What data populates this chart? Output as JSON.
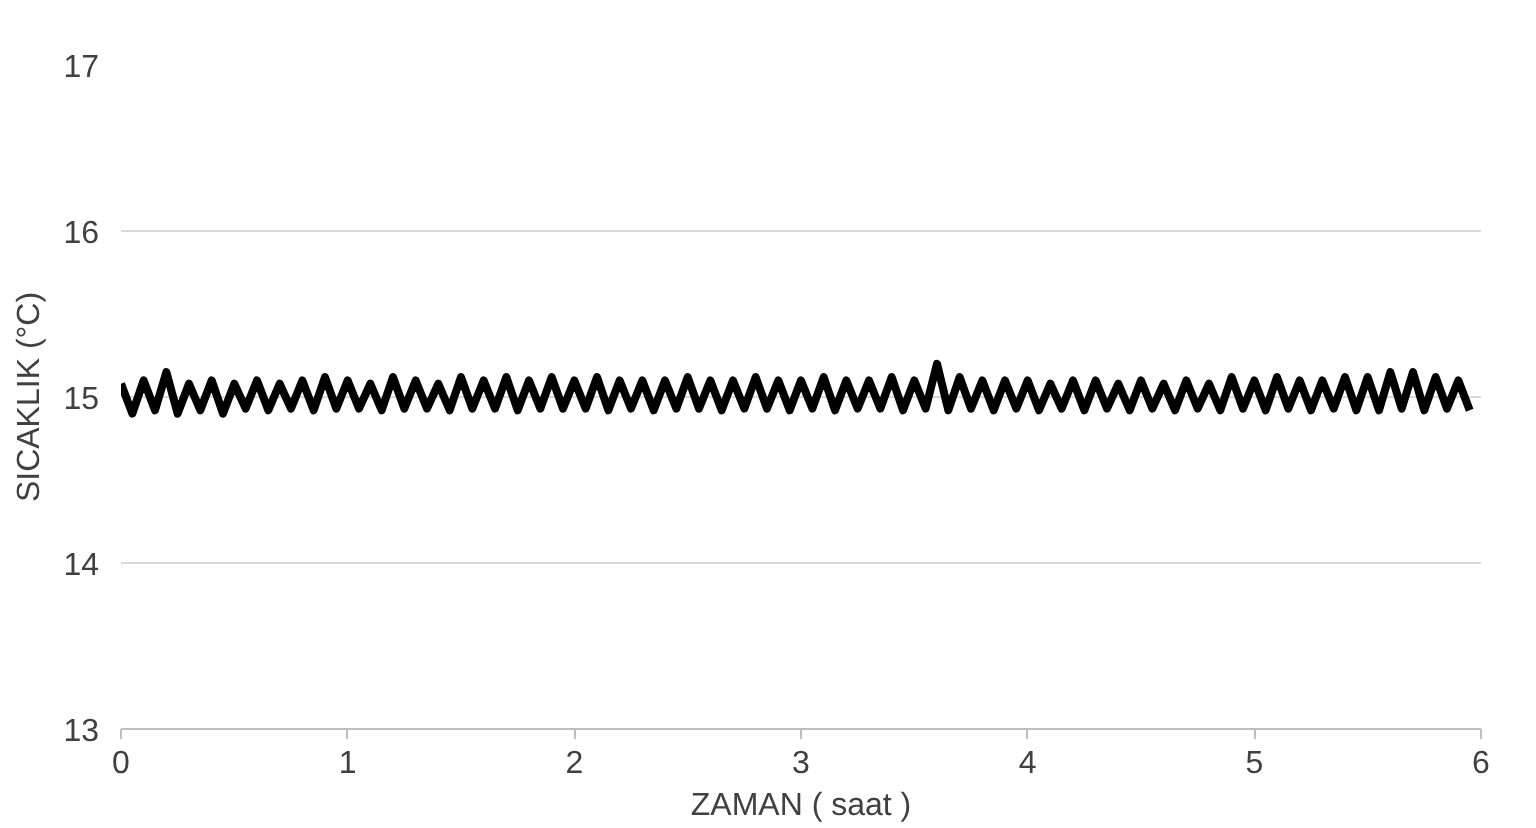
{
  "chart_data": {
    "type": "line",
    "xlabel": "ZAMAN ( saat )",
    "ylabel": "SICAKLIK (°C)",
    "xlim": [
      0,
      6
    ],
    "xticks": [
      0,
      1,
      2,
      3,
      4,
      5,
      6
    ],
    "ylim": [
      13,
      17
    ],
    "yticks": [
      13,
      14,
      15,
      16,
      17
    ],
    "grid": "y",
    "marker": "none",
    "line_style": "solid",
    "series": [
      {
        "color": "#000000",
        "x": [
          0,
          0.05,
          0.1,
          0.15,
          0.2,
          0.25,
          0.3,
          0.35,
          0.4,
          0.45,
          0.5,
          0.55,
          0.6,
          0.65,
          0.7,
          0.75,
          0.8,
          0.85,
          0.9,
          0.95,
          1.0,
          1.05,
          1.1,
          1.15,
          1.2,
          1.25,
          1.3,
          1.35,
          1.4,
          1.45,
          1.5,
          1.55,
          1.6,
          1.65,
          1.7,
          1.75,
          1.8,
          1.85,
          1.9,
          1.95,
          2.0,
          2.05,
          2.1,
          2.15,
          2.2,
          2.25,
          2.3,
          2.35,
          2.4,
          2.45,
          2.5,
          2.55,
          2.6,
          2.65,
          2.7,
          2.75,
          2.8,
          2.85,
          2.9,
          2.95,
          3.0,
          3.05,
          3.1,
          3.15,
          3.2,
          3.25,
          3.3,
          3.35,
          3.4,
          3.45,
          3.5,
          3.55,
          3.6,
          3.65,
          3.7,
          3.75,
          3.8,
          3.85,
          3.9,
          3.95,
          4.0,
          4.05,
          4.1,
          4.15,
          4.2,
          4.25,
          4.3,
          4.35,
          4.4,
          4.45,
          4.5,
          4.55,
          4.6,
          4.65,
          4.7,
          4.75,
          4.8,
          4.85,
          4.9,
          4.95,
          5.0,
          5.05,
          5.1,
          5.15,
          5.2,
          5.25,
          5.3,
          5.35,
          5.4,
          5.45,
          5.5,
          5.55,
          5.6,
          5.65,
          5.7,
          5.75,
          5.8,
          5.85,
          5.9,
          5.95
        ],
        "values": [
          15.08,
          14.9,
          15.1,
          14.92,
          15.15,
          14.9,
          15.08,
          14.92,
          15.1,
          14.9,
          15.08,
          14.93,
          15.1,
          14.92,
          15.08,
          14.93,
          15.1,
          14.92,
          15.12,
          14.93,
          15.1,
          14.93,
          15.08,
          14.92,
          15.12,
          14.93,
          15.1,
          14.93,
          15.08,
          14.92,
          15.12,
          14.93,
          15.1,
          14.93,
          15.12,
          14.92,
          15.1,
          14.93,
          15.12,
          14.93,
          15.1,
          14.93,
          15.12,
          14.92,
          15.1,
          14.93,
          15.1,
          14.92,
          15.1,
          14.93,
          15.12,
          14.93,
          15.1,
          14.92,
          15.1,
          14.93,
          15.12,
          14.93,
          15.1,
          14.92,
          15.1,
          14.93,
          15.12,
          14.92,
          15.1,
          14.93,
          15.1,
          14.93,
          15.12,
          14.92,
          15.1,
          14.93,
          15.2,
          14.92,
          15.12,
          14.93,
          15.1,
          14.92,
          15.1,
          14.93,
          15.1,
          14.92,
          15.08,
          14.93,
          15.1,
          14.92,
          15.1,
          14.93,
          15.08,
          14.92,
          15.1,
          14.93,
          15.08,
          14.92,
          15.1,
          14.93,
          15.08,
          14.92,
          15.12,
          14.93,
          15.1,
          14.92,
          15.12,
          14.93,
          15.1,
          14.92,
          15.1,
          14.93,
          15.12,
          14.92,
          15.12,
          14.92,
          15.15,
          14.93,
          15.15,
          14.92,
          15.12,
          14.93,
          15.1,
          14.92
        ]
      }
    ]
  }
}
